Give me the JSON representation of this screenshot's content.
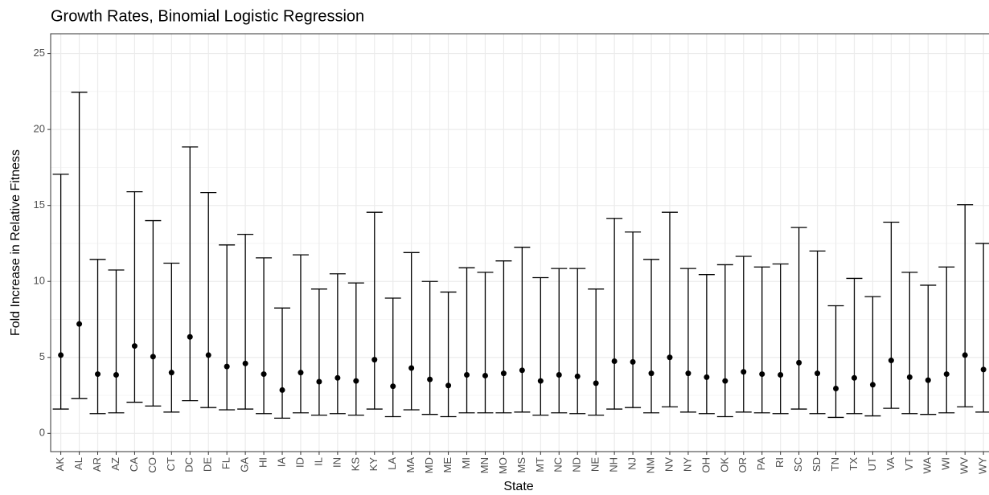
{
  "chart_data": {
    "type": "errorbar",
    "title": "Growth Rates, Binomial Logistic Regression",
    "x_label": "State",
    "y_label": "Fold Increase in Relative Fitness",
    "categories": [
      "AK",
      "AL",
      "AR",
      "AZ",
      "CA",
      "CO",
      "CT",
      "DC",
      "DE",
      "FL",
      "GA",
      "HI",
      "IA",
      "ID",
      "IL",
      "IN",
      "KS",
      "KY",
      "LA",
      "MA",
      "MD",
      "ME",
      "MI",
      "MN",
      "MO",
      "MS",
      "MT",
      "NC",
      "ND",
      "NE",
      "NH",
      "NJ",
      "NM",
      "NV",
      "NY",
      "OH",
      "OK",
      "OR",
      "PA",
      "RI",
      "SC",
      "SD",
      "TN",
      "TX",
      "UT",
      "VA",
      "VT",
      "WA",
      "WI",
      "WV",
      "WY"
    ],
    "values": [
      5.15,
      7.2,
      3.9,
      3.85,
      5.75,
      5.05,
      4.0,
      6.35,
      5.15,
      4.4,
      4.6,
      3.9,
      2.85,
      4.0,
      3.4,
      3.65,
      3.45,
      4.85,
      3.1,
      4.3,
      3.55,
      3.15,
      3.85,
      3.8,
      3.95,
      4.15,
      3.45,
      3.85,
      3.75,
      3.3,
      4.75,
      4.7,
      3.95,
      5.0,
      3.95,
      3.7,
      3.45,
      4.05,
      3.9,
      3.85,
      4.65,
      3.95,
      2.95,
      3.65,
      3.2,
      4.8,
      3.7,
      3.5,
      3.9,
      5.15,
      4.2
    ],
    "lower": [
      1.6,
      2.3,
      1.3,
      1.35,
      2.05,
      1.8,
      1.4,
      2.15,
      1.7,
      1.55,
      1.6,
      1.3,
      1.0,
      1.35,
      1.2,
      1.3,
      1.2,
      1.6,
      1.1,
      1.55,
      1.25,
      1.1,
      1.35,
      1.35,
      1.35,
      1.4,
      1.2,
      1.35,
      1.3,
      1.2,
      1.6,
      1.7,
      1.35,
      1.75,
      1.4,
      1.3,
      1.1,
      1.4,
      1.35,
      1.3,
      1.6,
      1.3,
      1.05,
      1.3,
      1.15,
      1.65,
      1.3,
      1.25,
      1.35,
      1.75,
      1.4
    ],
    "upper": [
      17.05,
      22.45,
      11.45,
      10.75,
      15.9,
      14.0,
      11.2,
      18.85,
      15.85,
      12.4,
      13.1,
      11.55,
      8.25,
      11.75,
      9.5,
      10.5,
      9.9,
      14.55,
      8.9,
      11.9,
      10.0,
      9.3,
      10.9,
      10.6,
      11.35,
      12.25,
      10.25,
      10.85,
      10.85,
      9.5,
      14.15,
      13.25,
      11.45,
      14.55,
      10.85,
      10.45,
      11.1,
      11.65,
      10.95,
      11.15,
      13.55,
      12.0,
      8.4,
      10.2,
      9.0,
      13.9,
      10.6,
      9.75,
      10.95,
      15.05,
      12.5
    ],
    "color": "#000000",
    "ylim": [
      -1.2,
      26.3
    ],
    "yticks": [
      0,
      5,
      10,
      15,
      20,
      25
    ],
    "grid": true
  }
}
